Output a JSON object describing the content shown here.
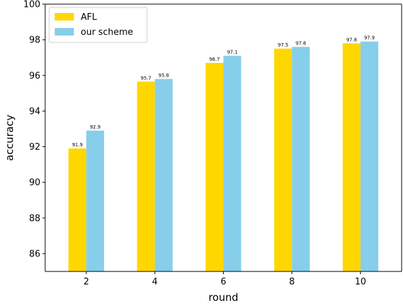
{
  "chart_data": {
    "type": "bar",
    "categories": [
      "2",
      "4",
      "6",
      "8",
      "10"
    ],
    "series": [
      {
        "name": "AFL",
        "values": [
          91.9,
          95.65,
          96.7,
          97.5,
          97.8
        ],
        "labels": [
          "91.9",
          "95.7",
          "96.7",
          "97.5",
          "97.8"
        ],
        "color": "#FFD700"
      },
      {
        "name": "our scheme",
        "values": [
          92.9,
          95.8,
          97.1,
          97.6,
          97.9
        ],
        "labels": [
          "92.9",
          "95.8",
          "97.1",
          "97.6",
          "97.9"
        ],
        "color": "#87CEEB"
      }
    ],
    "title": "",
    "xlabel": "round",
    "ylabel": "accuracy",
    "ylim": [
      85,
      100
    ],
    "yticks": [
      86,
      88,
      90,
      92,
      94,
      96,
      98,
      100
    ],
    "grid": false,
    "legend_position": "upper-left"
  }
}
